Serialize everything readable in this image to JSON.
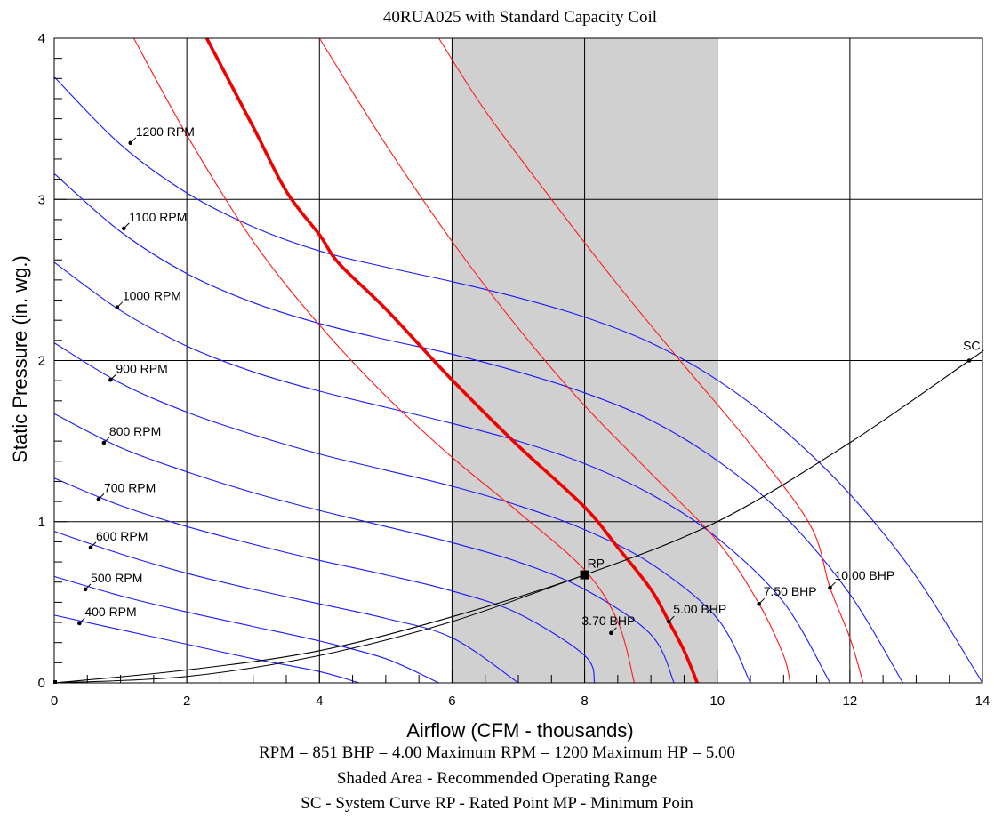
{
  "chart_data": {
    "type": "line",
    "title": "40RUA025 with Standard Capacity Coil",
    "xlabel": "Airflow (CFM - thousands)",
    "ylabel": "Static Pressure (in. wg.)",
    "xlim": [
      0,
      14
    ],
    "ylim": [
      0,
      4
    ],
    "x_ticks": [
      "0",
      "2",
      "4",
      "6",
      "8",
      "10",
      "12",
      "14"
    ],
    "y_ticks": [
      "0",
      "1",
      "2",
      "3",
      "4"
    ],
    "grid": true,
    "shaded_range": {
      "x": [
        6,
        10
      ],
      "color": "#d0d0d0"
    },
    "colors": {
      "rpm": "#1a1aff",
      "bhp": "#ff1a1a",
      "system": "#000000",
      "operating": "#ee0000"
    },
    "rpm_curves": [
      {
        "name": "400 RPM",
        "label_at": [
          0.38,
          0.37
        ],
        "points": [
          [
            0,
            0.42
          ],
          [
            1,
            0.33
          ],
          [
            2,
            0.24
          ],
          [
            3,
            0.15
          ],
          [
            4,
            0.07
          ],
          [
            4.6,
            0
          ]
        ]
      },
      {
        "name": "500 RPM",
        "label_at": [
          0.47,
          0.58
        ],
        "points": [
          [
            0,
            0.66
          ],
          [
            1,
            0.54
          ],
          [
            2,
            0.44
          ],
          [
            3,
            0.35
          ],
          [
            4,
            0.26
          ],
          [
            5,
            0.15
          ],
          [
            5.8,
            0
          ]
        ]
      },
      {
        "name": "600 RPM",
        "label_at": [
          0.55,
          0.84
        ],
        "points": [
          [
            0,
            0.94
          ],
          [
            1,
            0.8
          ],
          [
            2,
            0.68
          ],
          [
            3,
            0.58
          ],
          [
            4,
            0.49
          ],
          [
            5,
            0.4
          ],
          [
            6,
            0.28
          ],
          [
            7,
            0
          ]
        ]
      },
      {
        "name": "700 RPM",
        "label_at": [
          0.67,
          1.14
        ],
        "points": [
          [
            0,
            1.27
          ],
          [
            1,
            1.1
          ],
          [
            2,
            0.97
          ],
          [
            3,
            0.86
          ],
          [
            4,
            0.76
          ],
          [
            5,
            0.67
          ],
          [
            6,
            0.57
          ],
          [
            7,
            0.43
          ],
          [
            8,
            0.17
          ],
          [
            8.15,
            0
          ]
        ]
      },
      {
        "name": "800 RPM",
        "label_at": [
          0.75,
          1.49
        ],
        "points": [
          [
            0,
            1.67
          ],
          [
            1,
            1.46
          ],
          [
            2,
            1.31
          ],
          [
            3,
            1.18
          ],
          [
            4,
            1.07
          ],
          [
            5,
            0.97
          ],
          [
            6,
            0.87
          ],
          [
            7,
            0.75
          ],
          [
            8,
            0.58
          ],
          [
            9,
            0.3
          ],
          [
            9.35,
            0
          ]
        ]
      },
      {
        "name": "900 RPM",
        "label_at": [
          0.85,
          1.88
        ],
        "points": [
          [
            0,
            2.11
          ],
          [
            1,
            1.86
          ],
          [
            2,
            1.68
          ],
          [
            3,
            1.54
          ],
          [
            4,
            1.42
          ],
          [
            5,
            1.32
          ],
          [
            6,
            1.22
          ],
          [
            7,
            1.1
          ],
          [
            8,
            0.95
          ],
          [
            9,
            0.74
          ],
          [
            10,
            0.4
          ],
          [
            10.5,
            0
          ]
        ]
      },
      {
        "name": "1000 RPM",
        "label_at": [
          0.95,
          2.33
        ],
        "points": [
          [
            0,
            2.61
          ],
          [
            1,
            2.31
          ],
          [
            2,
            2.09
          ],
          [
            3,
            1.93
          ],
          [
            4,
            1.81
          ],
          [
            5,
            1.71
          ],
          [
            6,
            1.61
          ],
          [
            7,
            1.5
          ],
          [
            8,
            1.36
          ],
          [
            9,
            1.17
          ],
          [
            10,
            0.9
          ],
          [
            11,
            0.5
          ],
          [
            11.7,
            0
          ]
        ]
      },
      {
        "name": "1100 RPM",
        "label_at": [
          1.05,
          2.82
        ],
        "points": [
          [
            0,
            3.16
          ],
          [
            1,
            2.8
          ],
          [
            2,
            2.54
          ],
          [
            3,
            2.36
          ],
          [
            4,
            2.23
          ],
          [
            5,
            2.13
          ],
          [
            6,
            2.04
          ],
          [
            7,
            1.93
          ],
          [
            8,
            1.8
          ],
          [
            9,
            1.63
          ],
          [
            10,
            1.38
          ],
          [
            11,
            1.04
          ],
          [
            12,
            0.55
          ],
          [
            12.8,
            0
          ]
        ]
      },
      {
        "name": "1200 RPM",
        "label_at": [
          1.15,
          3.35
        ],
        "points": [
          [
            0,
            3.76
          ],
          [
            1,
            3.34
          ],
          [
            2,
            3.04
          ],
          [
            3,
            2.83
          ],
          [
            4,
            2.68
          ],
          [
            5,
            2.58
          ],
          [
            6,
            2.49
          ],
          [
            7,
            2.39
          ],
          [
            8,
            2.27
          ],
          [
            9,
            2.11
          ],
          [
            10,
            1.88
          ],
          [
            11,
            1.57
          ],
          [
            12,
            1.17
          ],
          [
            13,
            0.66
          ],
          [
            14,
            0
          ]
        ]
      }
    ],
    "bhp_curves": [
      {
        "name": "3.70 BHP",
        "label_at": [
          8.4,
          0.31
        ],
        "points": [
          [
            1.2,
            4
          ],
          [
            2,
            3.4
          ],
          [
            3,
            2.74
          ],
          [
            4,
            2.22
          ],
          [
            5,
            1.78
          ],
          [
            6,
            1.4
          ],
          [
            7,
            1.06
          ],
          [
            8,
            0.7
          ],
          [
            8.5,
            0.38
          ],
          [
            8.75,
            0
          ]
        ]
      },
      {
        "name": "5.00 BHP",
        "label_at": [
          9.27,
          0.38
        ],
        "points": [
          [
            2.3,
            4
          ],
          [
            3,
            3.45
          ],
          [
            3.5,
            3.05
          ],
          [
            4,
            2.78
          ],
          [
            4.3,
            2.6
          ],
          [
            5,
            2.32
          ],
          [
            6,
            1.88
          ],
          [
            7,
            1.47
          ],
          [
            8,
            1.09
          ],
          [
            8.5,
            0.84
          ],
          [
            9,
            0.58
          ],
          [
            9.27,
            0.38
          ],
          [
            9.5,
            0.2
          ],
          [
            9.7,
            0
          ]
        ]
      },
      {
        "name": "7.50 BHP",
        "label_at": [
          10.63,
          0.49
        ],
        "points": [
          [
            4,
            4
          ],
          [
            5,
            3.34
          ],
          [
            6,
            2.74
          ],
          [
            7,
            2.2
          ],
          [
            8,
            1.72
          ],
          [
            9,
            1.3
          ],
          [
            10,
            0.88
          ],
          [
            10.63,
            0.49
          ],
          [
            11,
            0.17
          ],
          [
            11.1,
            0
          ]
        ]
      },
      {
        "name": "10.00 BHP",
        "label_at": [
          11.7,
          0.59
        ],
        "points": [
          [
            5.8,
            4
          ],
          [
            6.5,
            3.55
          ],
          [
            7.5,
            3.0
          ],
          [
            8.5,
            2.47
          ],
          [
            9.5,
            1.97
          ],
          [
            10.5,
            1.48
          ],
          [
            11.4,
            0.98
          ],
          [
            11.7,
            0.59
          ],
          [
            12,
            0.28
          ],
          [
            12.2,
            0
          ]
        ]
      }
    ],
    "system_curve": {
      "name": "SC",
      "points": [
        [
          0,
          0
        ],
        [
          2,
          0.08
        ],
        [
          4,
          0.2
        ],
        [
          6,
          0.41
        ],
        [
          8,
          0.67
        ],
        [
          10,
          1.0
        ],
        [
          12,
          1.49
        ],
        [
          13.8,
          2.0
        ],
        [
          14,
          2.06
        ]
      ]
    },
    "system_curve_lower": {
      "points": [
        [
          0,
          0
        ],
        [
          2,
          0.04
        ],
        [
          4,
          0.17
        ],
        [
          6,
          0.38
        ],
        [
          8,
          0.67
        ]
      ]
    },
    "rated_point": {
      "name": "RP",
      "x": 8.0,
      "y": 0.67
    },
    "footer_lines": [
      "RPM = 851  BHP = 4.00  Maximum RPM = 1200  Maximum HP = 5.00",
      "Shaded Area - Recommended Operating Range",
      "SC - System Curve  RP - Rated Point  MP - Minimum Poin"
    ]
  }
}
